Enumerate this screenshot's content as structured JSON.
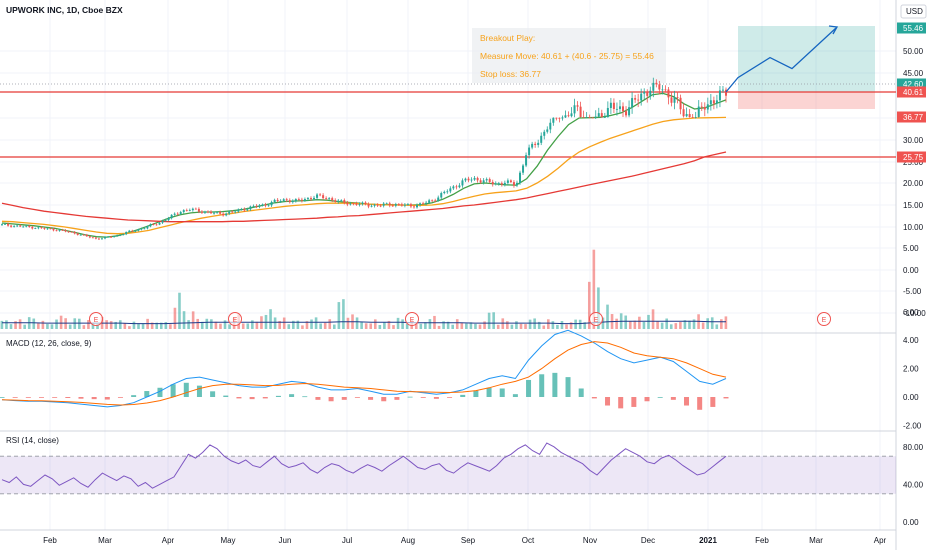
{
  "header": {
    "symbol_title": "UPWORK INC, 1D, Cboe BZX",
    "currency": "USD"
  },
  "annotations": {
    "title": "Breakout Play:",
    "measure_move": "Measure Move: 40.61 + (40.6 - 25.75) = 55.46",
    "stop_loss": "Stop loss: 36.77"
  },
  "colors": {
    "price_up": "#26a69a",
    "price_down": "#ef5350",
    "sma_fast": "#43a047",
    "sma_mid": "#f7a21b",
    "sma_slow": "#e53935",
    "macd": "#2196f3",
    "signal": "#ff6d00",
    "rsi": "#7e57c2",
    "projection": "#1565c0",
    "level_line": "#e53935",
    "annotation_text": "#f7a21b"
  },
  "chart_data": [
    {
      "type": "candlestick",
      "pane": "price",
      "axis_ticks": [
        55.46,
        50.0,
        45.0,
        42.6,
        40.62,
        40.61,
        36.77,
        35.0,
        30.0,
        25.75,
        25.0,
        20.0,
        15.0,
        10.0,
        5.0,
        0.0,
        -5.0,
        -10.0
      ],
      "axis_labels": [
        "55.46",
        "50.00",
        "45.00",
        "42.60",
        "40.62",
        "40.61",
        "36.77",
        "35.00",
        "30.00",
        "25.75",
        "25.00",
        "20.00",
        "15.00",
        "10.00",
        "5.00",
        "0.00",
        "-5.00",
        "-10.00"
      ],
      "price_labels": [
        {
          "value": 55.46,
          "text": "55.46",
          "role": "target"
        },
        {
          "value": 42.6,
          "text": "42.60",
          "role": "high"
        },
        {
          "value": 40.62,
          "text": "40.62",
          "role": "last"
        },
        {
          "value": 40.61,
          "text": "40.61",
          "role": "entry"
        },
        {
          "value": 36.77,
          "text": "36.77",
          "role": "stop"
        },
        {
          "value": 25.75,
          "text": "25.75",
          "role": "support"
        }
      ],
      "horizontal_levels": [
        40.61,
        25.75
      ],
      "ylim_note": "non-linear price scale",
      "x_labels": [
        "Feb",
        "Mar",
        "Apr",
        "May",
        "Jun",
        "Jul",
        "Aug",
        "Sep",
        "Oct",
        "Nov",
        "Dec",
        "2021",
        "Feb",
        "Mar",
        "Apr"
      ],
      "event_markers": [
        "E",
        "E",
        "E",
        "E",
        "E"
      ],
      "close_sample": [
        10.5,
        10.3,
        10.1,
        9.9,
        9.6,
        9.4,
        9.0,
        8.5,
        7.8,
        7.2,
        7.5,
        8.0,
        8.8,
        9.4,
        10.2,
        11.0,
        12.2,
        13.6,
        14.0,
        13.6,
        13.2,
        13.0,
        13.4,
        14.1,
        14.6,
        15.0,
        15.8,
        16.2,
        15.9,
        16.4,
        17.0,
        16.6,
        15.8,
        15.4,
        15.2,
        15.0,
        14.9,
        15.2,
        15.0,
        14.8,
        15.2,
        16.0,
        17.6,
        19.0,
        20.5,
        21.0,
        20.5,
        19.8,
        20.2,
        19.6,
        27.0,
        29.5,
        33.0,
        35.6,
        37.2,
        38.0,
        35.6,
        36.8,
        38.4,
        37.6,
        38.8,
        40.0,
        42.1,
        41.2,
        39.6,
        37.2,
        36.4,
        38.6,
        39.6,
        40.62
      ],
      "series": [
        {
          "name": "MA fast",
          "values": [
            10.9,
            10.7,
            10.5,
            10.3,
            10.0,
            9.7,
            9.2,
            8.7,
            8.1,
            7.7,
            7.6,
            7.9,
            8.6,
            9.4,
            10.3,
            11.2,
            12.1,
            12.8,
            13.2,
            13.4,
            13.4,
            13.5,
            13.7,
            14.0,
            14.5,
            15.0,
            15.5,
            15.8,
            15.9,
            16.0,
            16.2,
            16.1,
            15.8,
            15.6,
            15.4,
            15.2,
            15.1,
            15.1,
            15.0,
            15.0,
            15.1,
            15.5,
            16.3,
            17.4,
            18.8,
            19.8,
            20.0,
            19.8,
            19.6,
            19.5,
            21.0,
            24.0,
            27.5,
            30.8,
            33.5,
            35.0,
            35.6,
            36.2,
            37.0,
            37.4,
            38.2,
            39.2,
            40.2,
            40.4,
            39.9,
            38.8,
            38.0,
            38.2,
            38.8,
            39.4
          ]
        },
        {
          "name": "MA mid",
          "values": [
            11.3,
            11.2,
            11.0,
            10.8,
            10.6,
            10.3,
            10.0,
            9.6,
            9.2,
            8.8,
            8.5,
            8.4,
            8.5,
            8.8,
            9.2,
            9.8,
            10.4,
            11.0,
            11.5,
            12.0,
            12.4,
            12.8,
            13.1,
            13.5,
            13.8,
            14.1,
            14.4,
            14.7,
            14.9,
            15.1,
            15.3,
            15.4,
            15.4,
            15.4,
            15.3,
            15.2,
            15.1,
            15.0,
            15.0,
            14.9,
            14.9,
            15.0,
            15.3,
            15.8,
            16.4,
            17.0,
            17.5,
            17.8,
            18.0,
            18.2,
            18.8,
            20.0,
            21.6,
            23.5,
            25.4,
            27.0,
            28.3,
            29.4,
            30.4,
            31.2,
            32.0,
            32.8,
            33.6,
            34.2,
            34.6,
            34.8,
            35.0,
            35.3,
            35.7,
            36.0
          ]
        },
        {
          "name": "MA slow",
          "values": [
            15.4,
            14.9,
            14.4,
            14.0,
            13.6,
            13.3,
            13.0,
            12.7,
            12.4,
            12.2,
            12.0,
            11.8,
            11.6,
            11.5,
            11.4,
            11.3,
            11.2,
            11.2,
            11.2,
            11.2,
            11.2,
            11.2,
            11.3,
            11.3,
            11.4,
            11.5,
            11.6,
            11.7,
            11.8,
            11.9,
            12.0,
            12.2,
            12.3,
            12.5,
            12.6,
            12.8,
            13.0,
            13.2,
            13.4,
            13.6,
            13.8,
            14.0,
            14.2,
            14.5,
            14.8,
            15.0,
            15.3,
            15.6,
            15.9,
            16.2,
            16.6,
            17.1,
            17.6,
            18.1,
            18.6,
            19.1,
            19.6,
            20.1,
            20.6,
            21.1,
            21.6,
            22.2,
            22.8,
            23.4,
            24.0,
            24.6,
            25.2,
            25.8,
            26.4,
            27.0
          ]
        }
      ],
      "projection": [
        {
          "label": "start",
          "value": 40.61
        },
        {
          "label": "p1",
          "value": 44.0
        },
        {
          "label": "p2",
          "value": 48.5
        },
        {
          "label": "p3",
          "value": 46.0
        },
        {
          "label": "target",
          "value": 55.46
        }
      ]
    },
    {
      "type": "bar",
      "pane": "volume",
      "values": [
        0.18,
        0.12,
        0.15,
        0.1,
        0.22,
        0.14,
        0.11,
        0.16,
        0.12,
        0.09,
        0.13,
        0.1,
        0.45,
        0.22,
        0.15,
        0.11,
        0.18,
        0.12,
        0.26,
        0.14,
        0.11,
        0.16,
        0.12,
        0.38,
        0.18,
        0.12,
        0.1,
        0.14,
        0.11,
        0.16,
        0.1,
        0.12,
        0.09,
        0.22,
        0.13,
        0.1,
        0.15,
        0.12,
        0.1,
        0.14,
        1.0,
        0.3,
        0.22,
        0.16,
        0.24,
        0.14,
        0.12,
        0.18,
        0.15,
        0.2
      ],
      "series": [
        {
          "name": "Volume MA",
          "values": [
            0.14,
            0.14,
            0.14,
            0.13,
            0.13,
            0.13,
            0.13,
            0.13,
            0.13,
            0.12,
            0.12,
            0.12,
            0.13,
            0.14,
            0.15,
            0.15,
            0.15,
            0.15,
            0.15,
            0.15,
            0.15,
            0.15,
            0.15,
            0.16,
            0.16,
            0.15,
            0.15,
            0.15,
            0.14,
            0.14,
            0.14,
            0.14,
            0.13,
            0.13,
            0.13,
            0.13,
            0.13,
            0.13,
            0.12,
            0.12,
            0.14,
            0.16,
            0.17,
            0.17,
            0.17,
            0.17,
            0.17,
            0.17,
            0.16,
            0.16
          ]
        }
      ]
    },
    {
      "type": "line",
      "pane": "macd",
      "title": "MACD (12, 26, close, 9)",
      "ylim": [
        -3.0,
        6.5
      ],
      "axis_ticks": [
        6.0,
        4.0,
        2.0,
        0.0,
        -2.0
      ],
      "axis_labels": [
        "6.00",
        "4.00",
        "2.00",
        "0.00",
        "-2.00"
      ],
      "series": [
        {
          "name": "MACD",
          "values": [
            -0.2,
            -0.25,
            -0.3,
            -0.3,
            -0.35,
            -0.4,
            -0.5,
            -0.6,
            -0.7,
            -0.6,
            -0.4,
            0.0,
            0.4,
            0.9,
            1.3,
            1.4,
            1.2,
            1.0,
            0.8,
            0.7,
            0.7,
            0.9,
            1.1,
            1.0,
            0.7,
            0.5,
            0.5,
            0.6,
            0.4,
            0.2,
            0.2,
            0.4,
            0.3,
            0.2,
            0.3,
            0.5,
            0.9,
            1.3,
            1.5,
            1.3,
            2.6,
            3.6,
            4.4,
            4.7,
            4.3,
            3.8,
            3.2,
            2.7,
            2.4,
            2.6,
            2.8,
            2.5,
            1.8,
            1.1,
            0.9,
            1.3
          ]
        },
        {
          "name": "Signal",
          "values": [
            -0.2,
            -0.22,
            -0.25,
            -0.27,
            -0.3,
            -0.33,
            -0.38,
            -0.45,
            -0.52,
            -0.56,
            -0.53,
            -0.42,
            -0.25,
            0.0,
            0.3,
            0.6,
            0.8,
            0.9,
            0.9,
            0.85,
            0.8,
            0.82,
            0.9,
            0.95,
            0.9,
            0.8,
            0.7,
            0.65,
            0.6,
            0.5,
            0.4,
            0.38,
            0.36,
            0.33,
            0.32,
            0.35,
            0.45,
            0.65,
            0.9,
            1.1,
            1.4,
            2.0,
            2.7,
            3.3,
            3.7,
            3.9,
            3.8,
            3.5,
            3.1,
            2.9,
            2.8,
            2.7,
            2.4,
            2.0,
            1.6,
            1.4
          ]
        }
      ]
    },
    {
      "type": "line",
      "pane": "rsi",
      "title": "RSI (14, close)",
      "ylim": [
        0,
        100
      ],
      "axis_ticks": [
        80.0,
        40.0,
        0.0
      ],
      "axis_labels": [
        "80.00",
        "40.00",
        "0.00"
      ],
      "band": [
        30,
        70
      ],
      "series": [
        {
          "name": "RSI",
          "values": [
            45,
            42,
            48,
            40,
            38,
            44,
            50,
            46,
            39,
            43,
            47,
            41,
            37,
            45,
            52,
            48,
            44,
            49,
            46,
            38,
            42,
            36,
            40,
            44,
            48,
            60,
            72,
            68,
            74,
            82,
            78,
            70,
            65,
            62,
            66,
            60,
            58,
            64,
            70,
            62,
            58,
            60,
            63,
            56,
            52,
            58,
            62,
            60,
            55,
            52,
            57,
            61,
            58,
            54,
            60,
            65,
            70,
            64,
            58,
            56,
            60,
            62,
            55,
            52,
            58,
            63,
            60,
            57,
            54,
            60,
            68,
            72,
            78,
            82,
            76,
            72,
            84,
            80,
            74,
            70,
            66,
            62,
            55,
            50,
            58,
            66,
            72,
            78,
            74,
            70,
            64,
            62,
            68,
            71,
            66,
            60,
            55,
            50,
            52,
            58,
            64,
            70
          ]
        }
      ]
    }
  ]
}
